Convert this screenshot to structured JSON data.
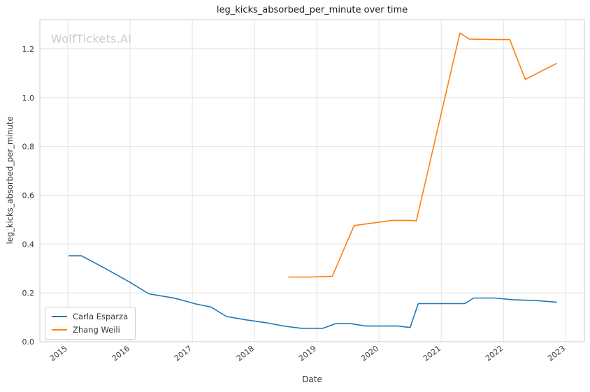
{
  "watermark": "WolfTickets.AI",
  "chart_data": {
    "type": "line",
    "title": "leg_kicks_absorbed_per_minute over time",
    "xlabel": "Date",
    "ylabel": "leg_kicks_absorbed_per_minute",
    "grid": true,
    "legend_position": "lower left",
    "xlim": [
      2014.55,
      2023.3
    ],
    "ylim": [
      0.0,
      1.32
    ],
    "x_ticks": [
      2015,
      2016,
      2017,
      2018,
      2019,
      2020,
      2021,
      2022,
      2023
    ],
    "y_ticks": [
      0.0,
      0.2,
      0.4,
      0.6,
      0.8,
      1.0,
      1.2
    ],
    "series": [
      {
        "name": "Carla Esparza",
        "color": "#1f77b4",
        "points": [
          [
            2015.02,
            0.352
          ],
          [
            2015.22,
            0.352
          ],
          [
            2015.6,
            0.3
          ],
          [
            2016.0,
            0.243
          ],
          [
            2016.3,
            0.196
          ],
          [
            2016.72,
            0.178
          ],
          [
            2017.05,
            0.155
          ],
          [
            2017.3,
            0.142
          ],
          [
            2017.55,
            0.103
          ],
          [
            2017.85,
            0.09
          ],
          [
            2018.2,
            0.077
          ],
          [
            2018.5,
            0.063
          ],
          [
            2018.75,
            0.055
          ],
          [
            2019.1,
            0.055
          ],
          [
            2019.3,
            0.074
          ],
          [
            2019.55,
            0.074
          ],
          [
            2019.78,
            0.064
          ],
          [
            2020.3,
            0.064
          ],
          [
            2020.5,
            0.058
          ],
          [
            2020.63,
            0.156
          ],
          [
            2021.2,
            0.156
          ],
          [
            2021.38,
            0.156
          ],
          [
            2021.52,
            0.179
          ],
          [
            2021.85,
            0.179
          ],
          [
            2022.15,
            0.172
          ],
          [
            2022.55,
            0.168
          ],
          [
            2022.85,
            0.162
          ]
        ]
      },
      {
        "name": "Zhang Weili",
        "color": "#ff7f0e",
        "points": [
          [
            2018.55,
            0.265
          ],
          [
            2018.9,
            0.265
          ],
          [
            2019.25,
            0.268
          ],
          [
            2019.6,
            0.476
          ],
          [
            2019.95,
            0.488
          ],
          [
            2020.2,
            0.497
          ],
          [
            2020.5,
            0.497
          ],
          [
            2020.6,
            0.495
          ],
          [
            2021.3,
            1.265
          ],
          [
            2021.45,
            1.24
          ],
          [
            2021.8,
            1.238
          ],
          [
            2022.1,
            1.238
          ],
          [
            2022.35,
            1.075
          ],
          [
            2022.85,
            1.14
          ]
        ]
      }
    ]
  }
}
